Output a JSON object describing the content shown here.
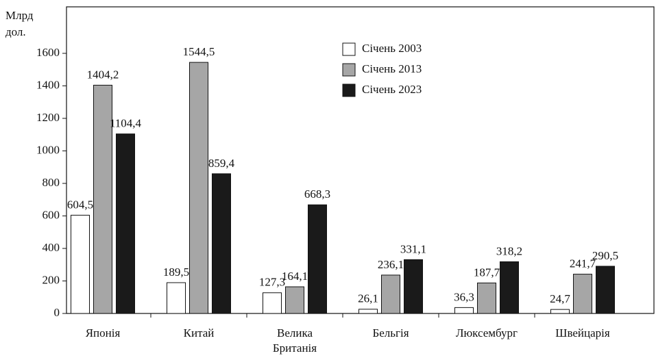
{
  "chart_data": {
    "type": "bar",
    "y_label": [
      "Млрд",
      "дол."
    ],
    "categories": [
      "Японія",
      "Китай",
      "Велика\nБританія",
      "Бельгія",
      "Люксембург",
      "Швейцарія"
    ],
    "series": [
      {
        "name": "Січень 2003",
        "color": "#ffffff",
        "values": [
          604.5,
          189.5,
          127.3,
          26.1,
          36.3,
          24.7
        ],
        "value_labels": [
          "604,5",
          "189,5",
          "127,3",
          "26,1",
          "36,3",
          "24,7"
        ]
      },
      {
        "name": "Січень 2013",
        "color": "#a6a6a6",
        "values": [
          1404.2,
          1544.5,
          164.1,
          236.1,
          187.7,
          241.7
        ],
        "value_labels": [
          "1404,2",
          "1544,5",
          "164,1",
          "236,1",
          "187,7",
          "241,7"
        ]
      },
      {
        "name": "Січень 2023",
        "color": "#1a1a1a",
        "values": [
          1104.4,
          859.4,
          668.3,
          331.1,
          318.2,
          290.5
        ],
        "value_labels": [
          "1104,4",
          "859,4",
          "668,3",
          "331,1",
          "318,2",
          "290,5"
        ]
      }
    ],
    "ylim": [
      0,
      1886
    ],
    "yticks": [
      0,
      200,
      400,
      600,
      800,
      1000,
      1200,
      1400,
      1600
    ],
    "legend": "top-center"
  }
}
